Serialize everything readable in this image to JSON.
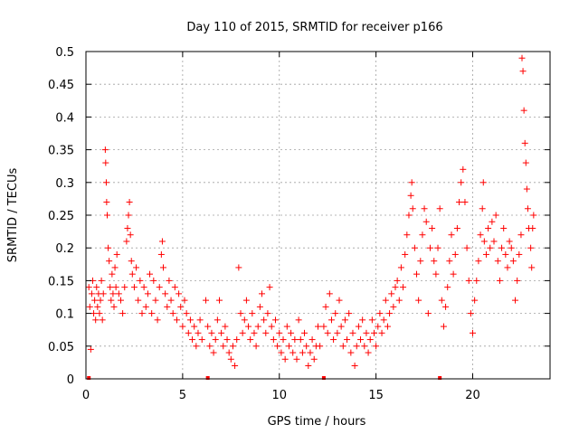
{
  "chart_data": {
    "type": "scatter",
    "title": "Day 110 of 2015, SRMTID for receiver p166",
    "xlabel": "GPS time / hours",
    "ylabel": "SRMTID / TECUs",
    "xlim": [
      0,
      24
    ],
    "ylim": [
      0,
      0.5
    ],
    "xticks": [
      0,
      5,
      10,
      15,
      20
    ],
    "yticks": [
      0,
      0.05,
      0.1,
      0.15,
      0.2,
      0.25,
      0.3,
      0.35,
      0.4,
      0.45,
      0.5
    ],
    "grid": true,
    "marker": "+",
    "color": "#ff0000",
    "x_positions_marks_at_zero": [
      0.15,
      6.3,
      12.3,
      18.3
    ],
    "series": [
      {
        "name": "SRMTID",
        "points": [
          [
            0.15,
            0.14
          ],
          [
            0.2,
            0.11
          ],
          [
            0.25,
            0.045
          ],
          [
            0.3,
            0.13
          ],
          [
            0.35,
            0.15
          ],
          [
            0.4,
            0.1
          ],
          [
            0.45,
            0.12
          ],
          [
            0.5,
            0.09
          ],
          [
            0.55,
            0.14
          ],
          [
            0.6,
            0.11
          ],
          [
            0.65,
            0.13
          ],
          [
            0.7,
            0.1
          ],
          [
            0.75,
            0.12
          ],
          [
            0.8,
            0.15
          ],
          [
            0.85,
            0.09
          ],
          [
            0.9,
            0.13
          ],
          [
            1.0,
            0.35
          ],
          [
            1.02,
            0.33
          ],
          [
            1.05,
            0.3
          ],
          [
            1.07,
            0.27
          ],
          [
            1.1,
            0.25
          ],
          [
            1.15,
            0.2
          ],
          [
            1.2,
            0.18
          ],
          [
            1.25,
            0.14
          ],
          [
            1.3,
            0.12
          ],
          [
            1.35,
            0.16
          ],
          [
            1.4,
            0.13
          ],
          [
            1.45,
            0.11
          ],
          [
            1.5,
            0.17
          ],
          [
            1.55,
            0.14
          ],
          [
            1.6,
            0.19
          ],
          [
            1.7,
            0.13
          ],
          [
            1.8,
            0.12
          ],
          [
            1.9,
            0.1
          ],
          [
            2.0,
            0.14
          ],
          [
            2.1,
            0.21
          ],
          [
            2.15,
            0.23
          ],
          [
            2.2,
            0.25
          ],
          [
            2.25,
            0.27
          ],
          [
            2.3,
            0.22
          ],
          [
            2.35,
            0.18
          ],
          [
            2.4,
            0.16
          ],
          [
            2.5,
            0.14
          ],
          [
            2.6,
            0.17
          ],
          [
            2.7,
            0.12
          ],
          [
            2.8,
            0.15
          ],
          [
            2.9,
            0.1
          ],
          [
            3.0,
            0.14
          ],
          [
            3.1,
            0.11
          ],
          [
            3.2,
            0.13
          ],
          [
            3.3,
            0.16
          ],
          [
            3.4,
            0.1
          ],
          [
            3.5,
            0.15
          ],
          [
            3.6,
            0.12
          ],
          [
            3.7,
            0.09
          ],
          [
            3.8,
            0.14
          ],
          [
            3.9,
            0.19
          ],
          [
            3.95,
            0.21
          ],
          [
            4.0,
            0.17
          ],
          [
            4.1,
            0.13
          ],
          [
            4.2,
            0.11
          ],
          [
            4.3,
            0.15
          ],
          [
            4.4,
            0.12
          ],
          [
            4.5,
            0.1
          ],
          [
            4.6,
            0.14
          ],
          [
            4.7,
            0.09
          ],
          [
            4.8,
            0.13
          ],
          [
            4.9,
            0.11
          ],
          [
            5.0,
            0.08
          ],
          [
            5.1,
            0.12
          ],
          [
            5.2,
            0.1
          ],
          [
            5.3,
            0.07
          ],
          [
            5.4,
            0.09
          ],
          [
            5.5,
            0.06
          ],
          [
            5.6,
            0.08
          ],
          [
            5.7,
            0.05
          ],
          [
            5.8,
            0.07
          ],
          [
            5.9,
            0.09
          ],
          [
            6.0,
            0.06
          ],
          [
            6.2,
            0.12
          ],
          [
            6.3,
            0.08
          ],
          [
            6.4,
            0.05
          ],
          [
            6.5,
            0.07
          ],
          [
            6.6,
            0.04
          ],
          [
            6.7,
            0.06
          ],
          [
            6.8,
            0.09
          ],
          [
            6.9,
            0.12
          ],
          [
            7.0,
            0.07
          ],
          [
            7.1,
            0.05
          ],
          [
            7.2,
            0.08
          ],
          [
            7.3,
            0.06
          ],
          [
            7.4,
            0.04
          ],
          [
            7.5,
            0.03
          ],
          [
            7.6,
            0.05
          ],
          [
            7.7,
            0.02
          ],
          [
            7.8,
            0.06
          ],
          [
            7.9,
            0.17
          ],
          [
            8.0,
            0.1
          ],
          [
            8.1,
            0.07
          ],
          [
            8.2,
            0.09
          ],
          [
            8.3,
            0.12
          ],
          [
            8.4,
            0.08
          ],
          [
            8.5,
            0.06
          ],
          [
            8.6,
            0.1
          ],
          [
            8.7,
            0.07
          ],
          [
            8.8,
            0.05
          ],
          [
            8.9,
            0.08
          ],
          [
            9.0,
            0.11
          ],
          [
            9.1,
            0.13
          ],
          [
            9.2,
            0.09
          ],
          [
            9.3,
            0.07
          ],
          [
            9.4,
            0.1
          ],
          [
            9.5,
            0.14
          ],
          [
            9.6,
            0.08
          ],
          [
            9.7,
            0.06
          ],
          [
            9.8,
            0.09
          ],
          [
            9.9,
            0.05
          ],
          [
            10.0,
            0.07
          ],
          [
            10.1,
            0.04
          ],
          [
            10.2,
            0.06
          ],
          [
            10.3,
            0.03
          ],
          [
            10.4,
            0.08
          ],
          [
            10.5,
            0.05
          ],
          [
            10.6,
            0.07
          ],
          [
            10.7,
            0.04
          ],
          [
            10.8,
            0.06
          ],
          [
            10.9,
            0.03
          ],
          [
            11.0,
            0.09
          ],
          [
            11.1,
            0.06
          ],
          [
            11.2,
            0.04
          ],
          [
            11.3,
            0.07
          ],
          [
            11.4,
            0.05
          ],
          [
            11.5,
            0.02
          ],
          [
            11.6,
            0.04
          ],
          [
            11.7,
            0.06
          ],
          [
            11.8,
            0.03
          ],
          [
            11.9,
            0.05
          ],
          [
            12.0,
            0.08
          ],
          [
            12.1,
            0.05
          ],
          [
            12.3,
            0.08
          ],
          [
            12.4,
            0.11
          ],
          [
            12.5,
            0.07
          ],
          [
            12.6,
            0.13
          ],
          [
            12.7,
            0.09
          ],
          [
            12.8,
            0.06
          ],
          [
            12.9,
            0.1
          ],
          [
            13.0,
            0.07
          ],
          [
            13.1,
            0.12
          ],
          [
            13.2,
            0.08
          ],
          [
            13.3,
            0.05
          ],
          [
            13.4,
            0.09
          ],
          [
            13.5,
            0.06
          ],
          [
            13.6,
            0.1
          ],
          [
            13.7,
            0.04
          ],
          [
            13.8,
            0.07
          ],
          [
            13.9,
            0.02
          ],
          [
            14.0,
            0.05
          ],
          [
            14.1,
            0.08
          ],
          [
            14.2,
            0.06
          ],
          [
            14.3,
            0.09
          ],
          [
            14.4,
            0.05
          ],
          [
            14.5,
            0.07
          ],
          [
            14.6,
            0.04
          ],
          [
            14.7,
            0.06
          ],
          [
            14.8,
            0.09
          ],
          [
            14.9,
            0.07
          ],
          [
            15.0,
            0.05
          ],
          [
            15.1,
            0.08
          ],
          [
            15.2,
            0.1
          ],
          [
            15.3,
            0.07
          ],
          [
            15.4,
            0.09
          ],
          [
            15.5,
            0.12
          ],
          [
            15.6,
            0.08
          ],
          [
            15.7,
            0.1
          ],
          [
            15.8,
            0.13
          ],
          [
            15.9,
            0.11
          ],
          [
            16.0,
            0.14
          ],
          [
            16.1,
            0.15
          ],
          [
            16.2,
            0.12
          ],
          [
            16.3,
            0.17
          ],
          [
            16.4,
            0.14
          ],
          [
            16.5,
            0.19
          ],
          [
            16.6,
            0.22
          ],
          [
            16.7,
            0.25
          ],
          [
            16.8,
            0.28
          ],
          [
            16.85,
            0.3
          ],
          [
            16.9,
            0.26
          ],
          [
            17.0,
            0.2
          ],
          [
            17.1,
            0.16
          ],
          [
            17.2,
            0.12
          ],
          [
            17.3,
            0.18
          ],
          [
            17.4,
            0.22
          ],
          [
            17.5,
            0.26
          ],
          [
            17.6,
            0.24
          ],
          [
            17.7,
            0.1
          ],
          [
            17.8,
            0.2
          ],
          [
            17.9,
            0.23
          ],
          [
            18.0,
            0.18
          ],
          [
            18.1,
            0.16
          ],
          [
            18.2,
            0.2
          ],
          [
            18.3,
            0.26
          ],
          [
            18.4,
            0.12
          ],
          [
            18.5,
            0.08
          ],
          [
            18.6,
            0.11
          ],
          [
            18.7,
            0.14
          ],
          [
            18.8,
            0.18
          ],
          [
            18.9,
            0.22
          ],
          [
            19.0,
            0.16
          ],
          [
            19.1,
            0.19
          ],
          [
            19.2,
            0.23
          ],
          [
            19.3,
            0.27
          ],
          [
            19.4,
            0.3
          ],
          [
            19.5,
            0.32
          ],
          [
            19.6,
            0.27
          ],
          [
            19.7,
            0.2
          ],
          [
            19.8,
            0.15
          ],
          [
            19.9,
            0.1
          ],
          [
            20.0,
            0.07
          ],
          [
            20.1,
            0.12
          ],
          [
            20.2,
            0.15
          ],
          [
            20.3,
            0.18
          ],
          [
            20.4,
            0.22
          ],
          [
            20.5,
            0.26
          ],
          [
            20.55,
            0.3
          ],
          [
            20.6,
            0.21
          ],
          [
            20.7,
            0.19
          ],
          [
            20.8,
            0.23
          ],
          [
            20.9,
            0.2
          ],
          [
            21.0,
            0.24
          ],
          [
            21.1,
            0.21
          ],
          [
            21.2,
            0.25
          ],
          [
            21.3,
            0.18
          ],
          [
            21.4,
            0.15
          ],
          [
            21.5,
            0.2
          ],
          [
            21.6,
            0.23
          ],
          [
            21.7,
            0.19
          ],
          [
            21.8,
            0.17
          ],
          [
            21.9,
            0.21
          ],
          [
            22.0,
            0.2
          ],
          [
            22.1,
            0.18
          ],
          [
            22.2,
            0.12
          ],
          [
            22.3,
            0.15
          ],
          [
            22.4,
            0.19
          ],
          [
            22.5,
            0.22
          ],
          [
            22.55,
            0.49
          ],
          [
            22.6,
            0.47
          ],
          [
            22.65,
            0.41
          ],
          [
            22.7,
            0.36
          ],
          [
            22.75,
            0.33
          ],
          [
            22.8,
            0.29
          ],
          [
            22.85,
            0.26
          ],
          [
            22.9,
            0.23
          ],
          [
            23.0,
            0.2
          ],
          [
            23.05,
            0.17
          ],
          [
            23.1,
            0.23
          ],
          [
            23.15,
            0.25
          ]
        ]
      }
    ]
  }
}
